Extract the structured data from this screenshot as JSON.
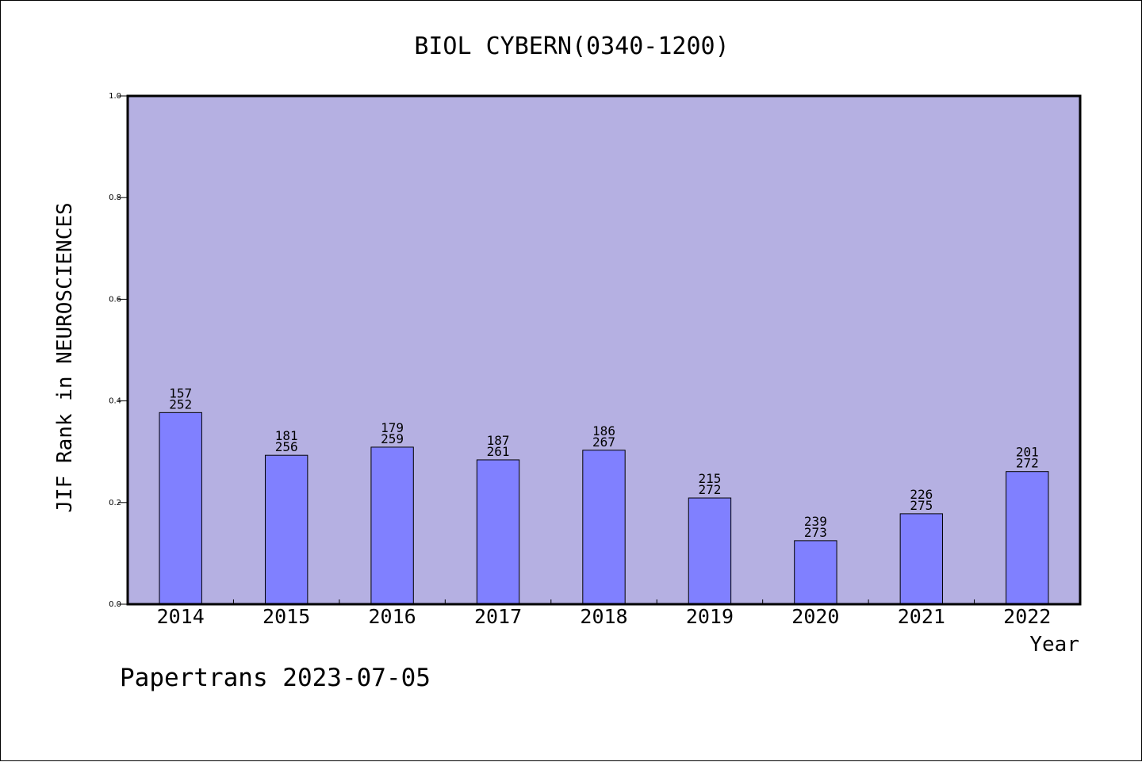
{
  "chart_data": {
    "type": "bar",
    "title": "BIOL CYBERN(0340-1200)",
    "xlabel": "Year",
    "ylabel": "JIF Rank in NEUROSCIENCES",
    "categories": [
      "2014",
      "2015",
      "2016",
      "2017",
      "2018",
      "2019",
      "2020",
      "2021",
      "2022"
    ],
    "values": [
      0.377,
      0.293,
      0.309,
      0.284,
      0.303,
      0.209,
      0.125,
      0.178,
      0.261
    ],
    "rank_labels": [
      "157",
      "181",
      "179",
      "187",
      "186",
      "215",
      "239",
      "226",
      "201"
    ],
    "total_labels": [
      "252",
      "256",
      "259",
      "261",
      "267",
      "272",
      "273",
      "275",
      "272"
    ],
    "ylim": [
      0,
      1.0
    ],
    "yticks": [
      "0.0",
      "0.2",
      "0.4",
      "0.6",
      "0.8",
      "1.0"
    ],
    "grid": false,
    "colors": {
      "plot_background": "#b5b0e2",
      "bar_fill": "#8080ff",
      "bar_stroke": "#000000"
    }
  },
  "footer": {
    "watermark": "Papertrans 2023-07-05"
  }
}
